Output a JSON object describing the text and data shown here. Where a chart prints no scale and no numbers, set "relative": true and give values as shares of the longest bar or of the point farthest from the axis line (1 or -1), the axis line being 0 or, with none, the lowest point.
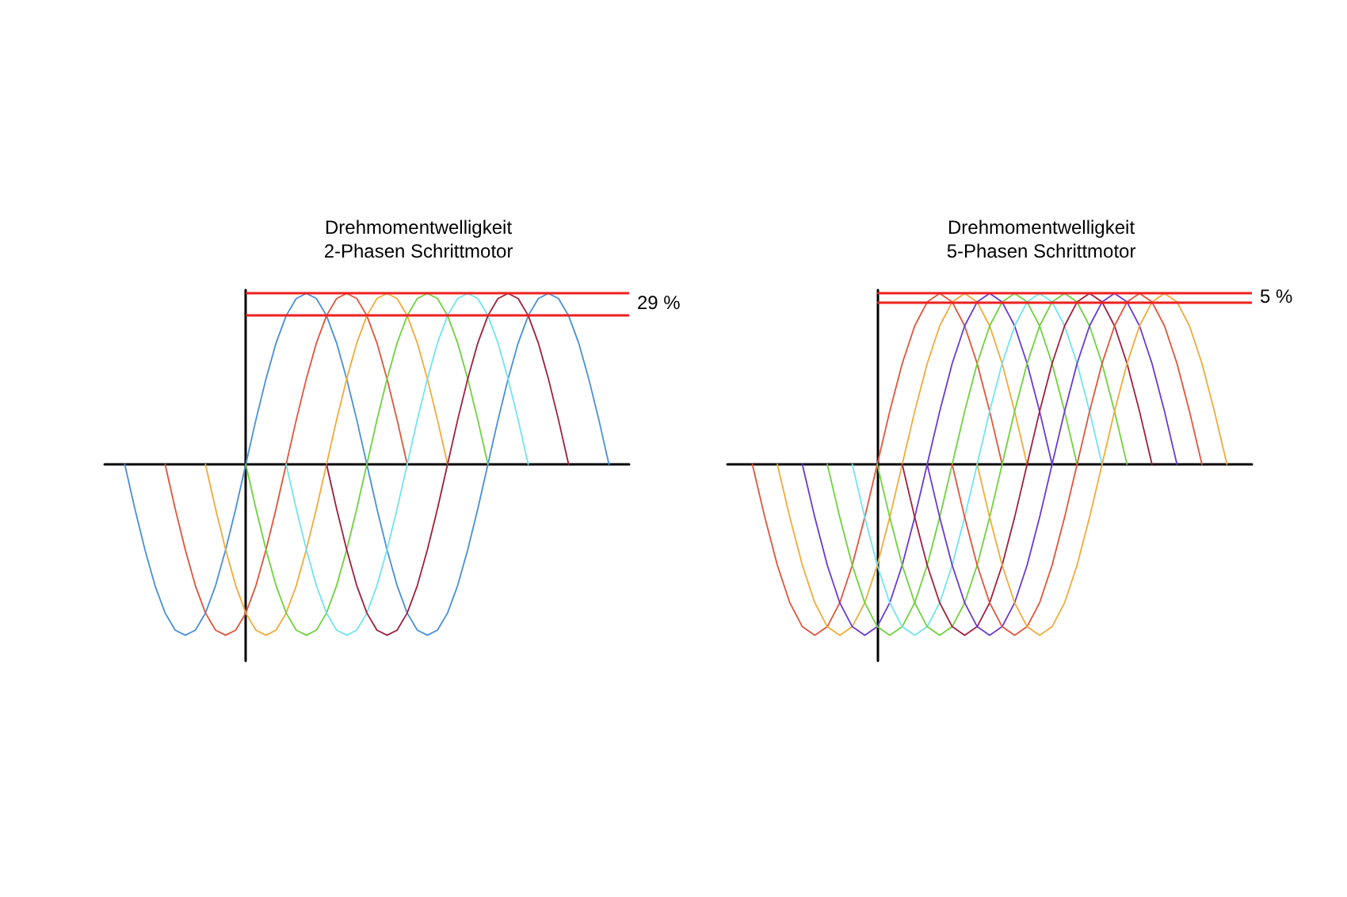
{
  "chart_data": [
    {
      "type": "line",
      "title": "Drehmomentwelligkeit\n2-Phasen Schrittmotor",
      "relative": true,
      "grid": false,
      "marker": "none",
      "line_style": "solid",
      "categories": [
        null,
        null,
        null,
        null,
        null,
        null,
        null,
        null,
        null,
        null,
        null,
        null,
        null,
        null,
        null,
        null,
        null,
        null,
        null,
        null,
        null,
        null,
        null,
        null,
        null,
        null,
        null,
        null,
        null,
        null,
        null,
        null,
        null,
        null,
        null,
        null,
        null,
        null,
        null,
        null,
        null,
        null,
        null,
        null,
        null,
        null,
        null,
        null,
        null,
        null,
        null,
        null,
        null
      ],
      "series": [
        {
          "color": "#4a8fd8",
          "values": [
            null,
            null,
            0,
            -0.26,
            -0.5,
            -0.71,
            -0.87,
            -0.97,
            -1,
            -0.97,
            -0.87,
            -0.71,
            -0.5,
            -0.26,
            0,
            0.26,
            0.5,
            0.71,
            0.87,
            0.97,
            1,
            0.97,
            0.87,
            0.71,
            0.5,
            0.26,
            0,
            -0.26,
            -0.5,
            -0.71,
            -0.87,
            -0.97,
            -1,
            -0.97,
            -0.87,
            -0.71,
            -0.5,
            -0.26,
            0,
            0.26,
            0.5,
            0.71,
            0.87,
            0.97,
            1,
            0.97,
            0.87,
            0.71,
            0.5,
            0.26,
            0,
            null,
            null
          ]
        },
        {
          "color": "#e0553c",
          "values": [
            null,
            null,
            null,
            null,
            null,
            null,
            0,
            -0.26,
            -0.5,
            -0.71,
            -0.87,
            -0.97,
            -1,
            -0.97,
            -0.87,
            -0.71,
            -0.5,
            -0.26,
            0,
            0.26,
            0.5,
            0.71,
            0.87,
            0.97,
            1,
            0.97,
            0.87,
            0.71,
            0.5,
            0.26,
            0,
            null,
            null,
            null,
            null,
            null,
            null,
            null,
            null,
            null,
            null,
            null,
            null,
            null,
            null,
            null,
            null,
            null,
            null,
            null,
            null,
            null,
            null
          ]
        },
        {
          "color": "#f2aa3a",
          "values": [
            null,
            null,
            null,
            null,
            null,
            null,
            null,
            null,
            null,
            null,
            0,
            -0.26,
            -0.5,
            -0.71,
            -0.87,
            -0.97,
            -1,
            -0.97,
            -0.87,
            -0.71,
            -0.5,
            -0.26,
            0,
            0.26,
            0.5,
            0.71,
            0.87,
            0.97,
            1,
            0.97,
            0.87,
            0.71,
            0.5,
            0.26,
            0,
            null,
            null,
            null,
            null,
            null,
            null,
            null,
            null,
            null,
            null,
            null,
            null,
            null,
            null,
            null,
            null,
            null,
            null
          ]
        },
        {
          "color": "#6fd23c",
          "values": [
            null,
            null,
            null,
            null,
            null,
            null,
            null,
            null,
            null,
            null,
            null,
            null,
            null,
            null,
            0,
            -0.26,
            -0.5,
            -0.71,
            -0.87,
            -0.97,
            -1,
            -0.97,
            -0.87,
            -0.71,
            -0.5,
            -0.26,
            0,
            0.26,
            0.5,
            0.71,
            0.87,
            0.97,
            1,
            0.97,
            0.87,
            0.71,
            0.5,
            0.26,
            0,
            null,
            null,
            null,
            null,
            null,
            null,
            null,
            null,
            null,
            null,
            null,
            null,
            null,
            null
          ]
        },
        {
          "color": "#70e4f0",
          "values": [
            null,
            null,
            null,
            null,
            null,
            null,
            null,
            null,
            null,
            null,
            null,
            null,
            null,
            null,
            null,
            null,
            null,
            null,
            0,
            -0.26,
            -0.5,
            -0.71,
            -0.87,
            -0.97,
            -1,
            -0.97,
            -0.87,
            -0.71,
            -0.5,
            -0.26,
            0,
            0.26,
            0.5,
            0.71,
            0.87,
            0.97,
            1,
            0.97,
            0.87,
            0.71,
            0.5,
            0.26,
            0,
            null,
            null,
            null,
            null,
            null,
            null,
            null,
            null,
            null,
            null
          ]
        },
        {
          "color": "#a0203c",
          "values": [
            null,
            null,
            null,
            null,
            null,
            null,
            null,
            null,
            null,
            null,
            null,
            null,
            null,
            null,
            null,
            null,
            null,
            null,
            null,
            null,
            null,
            null,
            0,
            -0.26,
            -0.5,
            -0.71,
            -0.87,
            -0.97,
            -1,
            -0.97,
            -0.87,
            -0.71,
            -0.5,
            -0.26,
            0,
            0.26,
            0.5,
            0.71,
            0.87,
            0.97,
            1,
            0.97,
            0.87,
            0.71,
            0.5,
            0.26,
            0,
            null,
            null,
            null,
            null,
            null,
            null
          ]
        }
      ],
      "ref_lines": [
        {
          "axis": "y",
          "value": 1,
          "color": "#ee2020"
        },
        {
          "axis": "y",
          "value": 0.87,
          "color": "#ee2020"
        }
      ],
      "annotations": [
        "29 %"
      ]
    },
    {
      "type": "line",
      "title": "Drehmomentwelligkeit\n5-Phasen Schrittmotor",
      "relative": true,
      "grid": false,
      "marker": "none",
      "line_style": "solid",
      "categories": [
        null,
        null,
        null,
        null,
        null,
        null,
        null,
        null,
        null,
        null,
        null,
        null,
        null,
        null,
        null,
        null,
        null,
        null,
        null,
        null,
        null,
        null,
        null,
        null,
        null,
        null,
        null,
        null,
        null,
        null,
        null,
        null,
        null,
        null,
        null,
        null,
        null,
        null,
        null,
        null,
        null,
        null,
        null
      ],
      "series": [
        {
          "color": "#e0553c",
          "values": [
            null,
            null,
            0,
            -0.31,
            -0.59,
            -0.81,
            -0.95,
            -1,
            -0.95,
            -0.81,
            -0.59,
            -0.31,
            0,
            0.31,
            0.59,
            0.81,
            0.95,
            1,
            0.95,
            0.81,
            0.59,
            0.31,
            0,
            null,
            null,
            null,
            null,
            null,
            null,
            null,
            null,
            null,
            null,
            null,
            null,
            null,
            null,
            null,
            null,
            null,
            null,
            null,
            null
          ]
        },
        {
          "color": "#f2aa3a",
          "values": [
            null,
            null,
            null,
            null,
            0,
            -0.31,
            -0.59,
            -0.81,
            -0.95,
            -1,
            -0.95,
            -0.81,
            -0.59,
            -0.31,
            0,
            0.31,
            0.59,
            0.81,
            0.95,
            1,
            0.95,
            0.81,
            0.59,
            0.31,
            0,
            null,
            null,
            null,
            null,
            null,
            null,
            null,
            null,
            null,
            null,
            null,
            null,
            null,
            null,
            null,
            null,
            null,
            null
          ]
        },
        {
          "color": "#6a3ad0",
          "values": [
            null,
            null,
            null,
            null,
            null,
            null,
            0,
            -0.31,
            -0.59,
            -0.81,
            -0.95,
            -1,
            -0.95,
            -0.81,
            -0.59,
            -0.31,
            0,
            0.31,
            0.59,
            0.81,
            0.95,
            1,
            0.95,
            0.81,
            0.59,
            0.31,
            0,
            null,
            null,
            null,
            null,
            null,
            null,
            null,
            null,
            null,
            null,
            null,
            null,
            null,
            null,
            null,
            null
          ]
        },
        {
          "color": "#6fd23c",
          "values": [
            null,
            null,
            null,
            null,
            null,
            null,
            null,
            null,
            0,
            -0.31,
            -0.59,
            -0.81,
            -0.95,
            -1,
            -0.95,
            -0.81,
            -0.59,
            -0.31,
            0,
            0.31,
            0.59,
            0.81,
            0.95,
            1,
            0.95,
            0.81,
            0.59,
            0.31,
            0,
            null,
            null,
            null,
            null,
            null,
            null,
            null,
            null,
            null,
            null,
            null,
            null,
            null,
            null
          ]
        },
        {
          "color": "#70e4f0",
          "values": [
            null,
            null,
            null,
            null,
            null,
            null,
            null,
            null,
            null,
            null,
            0,
            -0.31,
            -0.59,
            -0.81,
            -0.95,
            -1,
            -0.95,
            -0.81,
            -0.59,
            -0.31,
            0,
            0.31,
            0.59,
            0.81,
            0.95,
            1,
            0.95,
            0.81,
            0.59,
            0.31,
            0,
            null,
            null,
            null,
            null,
            null,
            null,
            null,
            null,
            null,
            null,
            null,
            null
          ]
        },
        {
          "color": "#6fd23c",
          "values": [
            null,
            null,
            null,
            null,
            null,
            null,
            null,
            null,
            null,
            null,
            null,
            null,
            0,
            -0.31,
            -0.59,
            -0.81,
            -0.95,
            -1,
            -0.95,
            -0.81,
            -0.59,
            -0.31,
            0,
            0.31,
            0.59,
            0.81,
            0.95,
            1,
            0.95,
            0.81,
            0.59,
            0.31,
            0,
            null,
            null,
            null,
            null,
            null,
            null,
            null,
            null,
            null,
            null
          ]
        },
        {
          "color": "#a0203c",
          "values": [
            null,
            null,
            null,
            null,
            null,
            null,
            null,
            null,
            null,
            null,
            null,
            null,
            null,
            null,
            0,
            -0.31,
            -0.59,
            -0.81,
            -0.95,
            -1,
            -0.95,
            -0.81,
            -0.59,
            -0.31,
            0,
            0.31,
            0.59,
            0.81,
            0.95,
            1,
            0.95,
            0.81,
            0.59,
            0.31,
            0,
            null,
            null,
            null,
            null,
            null,
            null,
            null,
            null
          ]
        },
        {
          "color": "#6a3ad0",
          "values": [
            null,
            null,
            null,
            null,
            null,
            null,
            null,
            null,
            null,
            null,
            null,
            null,
            null,
            null,
            null,
            null,
            0,
            -0.31,
            -0.59,
            -0.81,
            -0.95,
            -1,
            -0.95,
            -0.81,
            -0.59,
            -0.31,
            0,
            0.31,
            0.59,
            0.81,
            0.95,
            1,
            0.95,
            0.81,
            0.59,
            0.31,
            0,
            null,
            null,
            null,
            null,
            null,
            null
          ]
        },
        {
          "color": "#e0553c",
          "values": [
            null,
            null,
            null,
            null,
            null,
            null,
            null,
            null,
            null,
            null,
            null,
            null,
            null,
            null,
            null,
            null,
            null,
            null,
            0,
            -0.31,
            -0.59,
            -0.81,
            -0.95,
            -1,
            -0.95,
            -0.81,
            -0.59,
            -0.31,
            0,
            0.31,
            0.59,
            0.81,
            0.95,
            1,
            0.95,
            0.81,
            0.59,
            0.31,
            0,
            null,
            null,
            null,
            null
          ]
        },
        {
          "color": "#f2aa3a",
          "values": [
            null,
            null,
            null,
            null,
            null,
            null,
            null,
            null,
            null,
            null,
            null,
            null,
            null,
            null,
            null,
            null,
            null,
            null,
            null,
            null,
            0,
            -0.31,
            -0.59,
            -0.81,
            -0.95,
            -1,
            -0.95,
            -0.81,
            -0.59,
            -0.31,
            0,
            0.31,
            0.59,
            0.81,
            0.95,
            1,
            0.95,
            0.81,
            0.59,
            0.31,
            0,
            null,
            null
          ]
        }
      ],
      "ref_lines": [
        {
          "axis": "y",
          "value": 1,
          "color": "#ee2020"
        },
        {
          "axis": "y",
          "value": 0.95,
          "color": "#ee2020"
        }
      ],
      "annotations": [
        "5 %"
      ]
    }
  ]
}
